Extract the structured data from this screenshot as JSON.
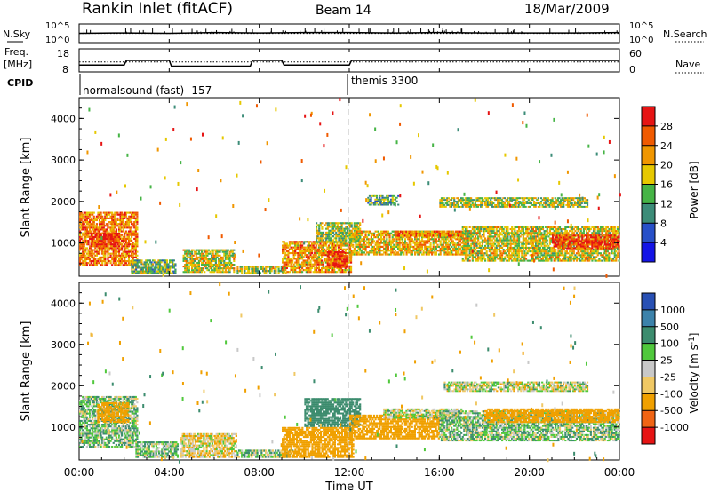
{
  "header": {
    "station": "Rankin Inlet (fitACF)",
    "beam": "Beam 14",
    "date": "18/Mar/2009"
  },
  "nsky_panel": {
    "left_label": "N.Sky",
    "right_label": "N.Search",
    "left_ticks": [
      "10^5",
      "10^0"
    ],
    "right_ticks": [
      "10^5",
      "10^0"
    ]
  },
  "freq_panel": {
    "left_label_1": "Freq.",
    "left_label_2": "[MHz]",
    "right_label": "Nave",
    "left_ticks": [
      "18",
      "8"
    ],
    "right_ticks": [
      "60",
      "0"
    ]
  },
  "cpid": {
    "label": "CPID",
    "segments": [
      {
        "text": "normalsound (fast) -157",
        "start_hour": 0
      },
      {
        "text": "themis 3300",
        "start_hour": 12
      }
    ]
  },
  "x_axis": {
    "label": "Time UT",
    "ticks": [
      "00:00",
      "04:00",
      "08:00",
      "12:00",
      "16:00",
      "20:00",
      "00:00"
    ],
    "tick_hours": [
      0,
      4,
      8,
      12,
      16,
      20,
      24
    ]
  },
  "y_axis": {
    "label": "Slant Range [km]",
    "ticks": [
      "1000",
      "2000",
      "3000",
      "4000"
    ],
    "tick_values": [
      1000,
      2000,
      3000,
      4000
    ],
    "range": [
      200,
      4500
    ]
  },
  "power_colorbar": {
    "label": "Power [dB]",
    "ticks": [
      "4",
      "8",
      "12",
      "16",
      "20",
      "24",
      "28"
    ],
    "colors": [
      "#1414e6",
      "#2850c8",
      "#3c8c78",
      "#46b446",
      "#e6c800",
      "#f09600",
      "#f05a00",
      "#e61414"
    ]
  },
  "velocity_colorbar": {
    "label": "Velocity [m s^-1]",
    "ticks": [
      "1000",
      "500",
      "100",
      "25",
      "-25",
      "-100",
      "-500",
      "-1000"
    ],
    "colors": [
      "#2850b4",
      "#3c82aa",
      "#3c8c6e",
      "#50c83c",
      "#c8c8c8",
      "#f0c864",
      "#f0a000",
      "#f06414",
      "#e61414"
    ]
  },
  "chart_data": [
    {
      "type": "line",
      "title": "N.Sky / N.Search",
      "x": [
        0,
        2,
        4,
        6,
        8,
        10,
        12,
        14,
        16,
        18,
        20,
        22,
        24
      ],
      "series": [
        {
          "name": "N.Sky",
          "values": [
            2.5,
            2.6,
            2.5,
            2.7,
            2.6,
            2.7,
            2.7,
            2.6,
            2.7,
            2.6,
            2.6,
            2.6,
            2.7
          ]
        }
      ]
    },
    {
      "type": "line",
      "title": "Freq. [MHz] / Nave",
      "x": [
        0,
        2,
        2.1,
        4,
        4.1,
        7.6,
        7.7,
        9,
        9.1,
        12,
        12.1,
        24
      ],
      "series": [
        {
          "name": "Freq.",
          "values": [
            11,
            11,
            13,
            13,
            10.5,
            10.5,
            13,
            13,
            11,
            11,
            13,
            13
          ]
        },
        {
          "name": "Nave",
          "values": [
            26,
            26,
            26,
            26,
            26,
            26,
            26,
            26,
            26,
            26,
            26,
            26
          ]
        }
      ]
    },
    {
      "type": "heatmap",
      "title": "Power [dB]",
      "xlabel": "Time UT",
      "ylabel": "Slant Range [km]",
      "xlim": [
        0,
        24
      ],
      "ylim": [
        200,
        4500
      ],
      "regions": [
        {
          "t0": 0.0,
          "t1": 2.6,
          "r0": 450,
          "r1": 1750,
          "value": 24
        },
        {
          "t0": 0.5,
          "t1": 1.8,
          "r0": 900,
          "r1": 1250,
          "value": 28
        },
        {
          "t0": 2.3,
          "t1": 4.3,
          "r0": 250,
          "r1": 600,
          "value": 14
        },
        {
          "t0": 4.6,
          "t1": 6.9,
          "r0": 280,
          "r1": 850,
          "value": 18
        },
        {
          "t0": 7.0,
          "t1": 9.2,
          "r0": 250,
          "r1": 450,
          "value": 16
        },
        {
          "t0": 9.0,
          "t1": 12.1,
          "r0": 280,
          "r1": 1050,
          "value": 22
        },
        {
          "t0": 11.0,
          "t1": 11.9,
          "r0": 400,
          "r1": 800,
          "value": 28
        },
        {
          "t0": 10.5,
          "t1": 12.5,
          "r0": 1000,
          "r1": 1500,
          "value": 16
        },
        {
          "t0": 12.0,
          "t1": 17.2,
          "r0": 700,
          "r1": 1300,
          "value": 20
        },
        {
          "t0": 14.0,
          "t1": 17.0,
          "r0": 1150,
          "r1": 1300,
          "value": 24
        },
        {
          "t0": 17.0,
          "t1": 24.0,
          "r0": 550,
          "r1": 1400,
          "value": 18
        },
        {
          "t0": 21.0,
          "t1": 24.0,
          "r0": 850,
          "r1": 1200,
          "value": 28
        },
        {
          "t0": 16.0,
          "t1": 22.6,
          "r0": 1850,
          "r1": 2100,
          "value": 16
        },
        {
          "t0": 12.8,
          "t1": 14.2,
          "r0": 1900,
          "r1": 2150,
          "value": 12
        }
      ]
    },
    {
      "type": "heatmap",
      "title": "Velocity [m s^-1]",
      "xlabel": "Time UT",
      "ylabel": "Slant Range [km]",
      "xlim": [
        0,
        24
      ],
      "ylim": [
        200,
        4500
      ],
      "regions": [
        {
          "t0": 0.0,
          "t1": 2.6,
          "r0": 500,
          "r1": 1750,
          "value": 60
        },
        {
          "t0": 0.8,
          "t1": 2.2,
          "r0": 1100,
          "r1": 1600,
          "value": -300
        },
        {
          "t0": 2.5,
          "t1": 4.4,
          "r0": 250,
          "r1": 650,
          "value": 60
        },
        {
          "t0": 4.5,
          "t1": 7.0,
          "r0": 250,
          "r1": 850,
          "value": -60
        },
        {
          "t0": 7.0,
          "t1": 9.5,
          "r0": 250,
          "r1": 450,
          "value": 60
        },
        {
          "t0": 9.0,
          "t1": 12.2,
          "r0": 250,
          "r1": 1000,
          "value": -300
        },
        {
          "t0": 10.0,
          "t1": 12.5,
          "r0": 1000,
          "r1": 1700,
          "value": 300
        },
        {
          "t0": 12.0,
          "t1": 16.0,
          "r0": 700,
          "r1": 1300,
          "value": -300
        },
        {
          "t0": 13.5,
          "t1": 17.0,
          "r0": 1200,
          "r1": 1450,
          "value": 0
        },
        {
          "t0": 16.0,
          "t1": 24.0,
          "r0": 650,
          "r1": 1400,
          "value": 60
        },
        {
          "t0": 18.0,
          "t1": 24.0,
          "r0": 1100,
          "r1": 1450,
          "value": -300
        },
        {
          "t0": 16.2,
          "t1": 22.6,
          "r0": 1850,
          "r1": 2100,
          "value": 0
        }
      ]
    }
  ]
}
